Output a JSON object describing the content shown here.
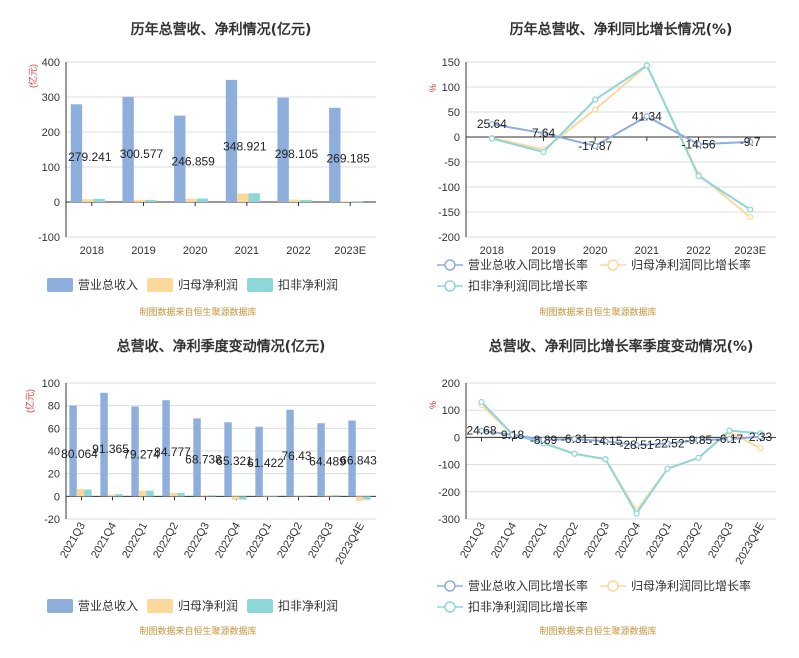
{
  "colors": {
    "revenue": "#8eaedc",
    "net_profit": "#fcd89a",
    "deducted_profit": "#8dd7d8",
    "revenue_line": "#8eaedc",
    "net_profit_line": "#fcd89a",
    "deducted_profit_line": "#8dd7d8",
    "source": "#c8923a",
    "unit": "#e03030"
  },
  "chart_data": [
    {
      "type": "bar",
      "title": "历年总营收、净利情况(亿元)",
      "unit_label": "(亿元)",
      "categories": [
        "2018",
        "2019",
        "2020",
        "2021",
        "2022",
        "2023E"
      ],
      "ylim": [
        -100,
        400
      ],
      "yticks": [
        "400",
        "300",
        "200",
        "100",
        "0",
        "-100"
      ],
      "series": [
        {
          "name": "营业总收入",
          "values": [
            279.241,
            300.577,
            246.859,
            348.921,
            298.105,
            269.185
          ]
        },
        {
          "name": "归母净利润",
          "values": [
            8,
            6,
            9,
            24,
            7,
            2
          ]
        },
        {
          "name": "扣非净利润",
          "values": [
            9,
            6,
            10,
            25,
            6,
            1
          ]
        }
      ],
      "data_labels": [
        "279.241",
        "300.577",
        "246.859",
        "348.921",
        "298.105",
        "269.185"
      ],
      "legend_position": "bottom",
      "source": "制图数据来自恒生聚源数据库"
    },
    {
      "type": "line",
      "title": "历年总营收、净利同比增长情况(%)",
      "unit_label": "%",
      "categories": [
        "2018",
        "2019",
        "2020",
        "2021",
        "2022",
        "2023E"
      ],
      "ylim": [
        -200,
        150
      ],
      "yticks": [
        "150",
        "100",
        "50",
        "0",
        "-50",
        "-100",
        "-150",
        "-200"
      ],
      "series": [
        {
          "name": "营业总收入同比增长率",
          "values": [
            25.64,
            7.64,
            -17.87,
            41.34,
            -14.56,
            -9.7
          ]
        },
        {
          "name": "归母净利润同比增长率",
          "values": [
            -2,
            -25,
            55,
            143,
            -75,
            -160
          ]
        },
        {
          "name": "扣非净利润同比增长率",
          "values": [
            -3,
            -30,
            75,
            143,
            -78,
            -145
          ]
        }
      ],
      "data_labels": [
        "25.64",
        "7.64",
        "-17.87",
        "41.34",
        "-14.56",
        "-9.7"
      ],
      "legend_position": "bottom",
      "source": "制图数据来自恒生聚源数据库"
    },
    {
      "type": "bar",
      "title": "总营收、净利季度变动情况(亿元)",
      "unit_label": "(亿元)",
      "categories": [
        "2021Q3",
        "2021Q4",
        "2022Q1",
        "2022Q2",
        "2022Q3",
        "2022Q4",
        "2023Q1",
        "2023Q2",
        "2023Q3",
        "2023Q4E"
      ],
      "ylim": [
        -20,
        100
      ],
      "yticks": [
        "100",
        "80",
        "60",
        "40",
        "20",
        "0",
        "-20"
      ],
      "series": [
        {
          "name": "营业总收入",
          "values": [
            80.064,
            91.365,
            79.274,
            84.777,
            68.738,
            65.321,
            61.422,
            76.43,
            64.489,
            66.843
          ]
        },
        {
          "name": "归母净利润",
          "values": [
            6.5,
            1.5,
            5,
            3,
            1,
            -3,
            -0.5,
            0.5,
            1,
            -4
          ]
        },
        {
          "name": "扣非净利润",
          "values": [
            6,
            2,
            5,
            3,
            1,
            -3,
            -0.5,
            0.5,
            1,
            -3
          ]
        }
      ],
      "data_labels": [
        "80.064",
        "91.365",
        "79.274",
        "84.777",
        "68.738",
        "65.321",
        "61.422",
        "76.43",
        "64.489",
        "66.843"
      ],
      "legend_position": "bottom",
      "source": "制图数据来自恒生聚源数据库"
    },
    {
      "type": "line",
      "title": "总营收、净利同比增长率季度变动情况(%)",
      "unit_label": "%",
      "categories": [
        "2021Q3",
        "2021Q4",
        "2022Q1",
        "2022Q2",
        "2022Q3",
        "2022Q4",
        "2023Q1",
        "2023Q2",
        "2023Q3",
        "2023Q4E"
      ],
      "ylim": [
        -300,
        200
      ],
      "yticks": [
        "200",
        "100",
        "0",
        "-100",
        "-200",
        "-300"
      ],
      "series": [
        {
          "name": "营业总收入同比增长率",
          "values": [
            24.68,
            9.18,
            -8.89,
            -6.31,
            -14.15,
            -28.51,
            -22.52,
            -9.85,
            -6.17,
            2.33
          ]
        },
        {
          "name": "归母净利润同比增长率",
          "values": [
            120,
            10,
            -20,
            -60,
            -80,
            -270,
            -115,
            -75,
            20,
            -40
          ]
        },
        {
          "name": "扣非净利润同比增长率",
          "values": [
            130,
            12,
            -22,
            -60,
            -80,
            -280,
            -115,
            -75,
            25,
            15
          ]
        }
      ],
      "data_labels": [
        "24.68",
        "9.18",
        "-8.89",
        "-6.31",
        "-14.15",
        "-28.51",
        "-22.52",
        "-9.85",
        "-6.17",
        "2.33"
      ],
      "legend_position": "bottom",
      "source": "制图数据来自恒生聚源数据库"
    }
  ]
}
